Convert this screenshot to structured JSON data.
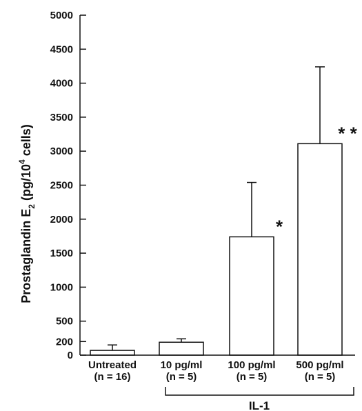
{
  "chart_data": {
    "type": "bar",
    "ylabel": "Prostaglandin E2 (pg/10^4 cells)",
    "ylabel_parts": {
      "before": "Prostaglandin E",
      "sub": "2",
      "middle": " (pg/10",
      "sup": "4",
      "after": " cells)"
    },
    "yticks": [
      0,
      200,
      500,
      1000,
      1500,
      2000,
      2500,
      3000,
      3500,
      4000,
      4500,
      5000
    ],
    "ylim": [
      0,
      5000
    ],
    "categories": [
      {
        "line1": "Untreated",
        "line2": "(n = 16)"
      },
      {
        "line1": "10 pg/ml",
        "line2": "(n = 5)"
      },
      {
        "line1": "100 pg/ml",
        "line2": "(n = 5)"
      },
      {
        "line1": "500 pg/ml",
        "line2": "(n = 5)"
      }
    ],
    "values": [
      70,
      190,
      1740,
      3110
    ],
    "error_upper": [
      150,
      240,
      2540,
      4240
    ],
    "significance": [
      "",
      "",
      "*",
      "* *"
    ],
    "group_label": "IL-1",
    "grid": false,
    "bar_fill": "#ffffff",
    "stroke_color": "#111111"
  }
}
